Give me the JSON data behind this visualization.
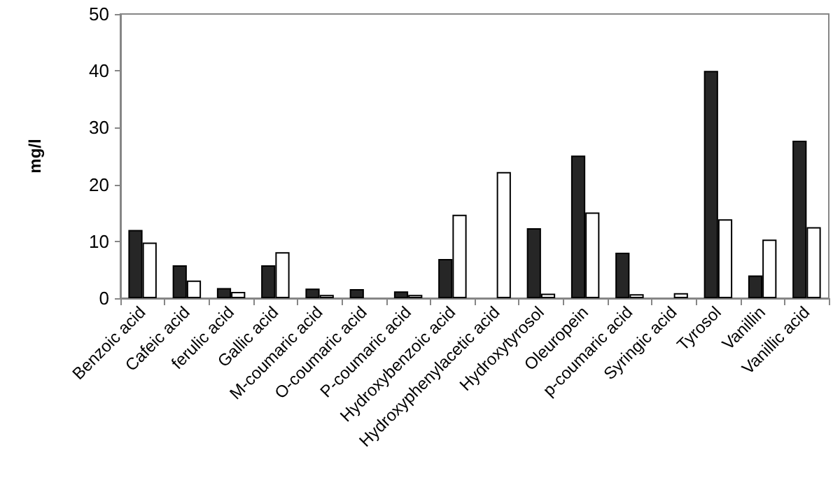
{
  "chart_data": {
    "type": "bar",
    "ylabel": "mg/l",
    "categories": [
      "Benzoic acid",
      "Cafeic acid",
      "ferulic acid",
      "Gallic acid",
      "M-coumaric acid",
      "O-coumaric acid",
      "P-coumaric acid",
      "Hydroxybenzoic acid",
      "Hydroxyphenylacetic acid",
      "Hydroxytyrosol",
      "Oleuropein",
      "p-coumaric acid",
      "Syringic acid",
      "Tyrosol",
      "Vanillin",
      "Vanillic acid"
    ],
    "series": [
      {
        "color": "#262626",
        "values": [
          12,
          5.8,
          1.8,
          5.8,
          1.7,
          1.6,
          1.2,
          6.9,
          null,
          12.3,
          25.1,
          8,
          null,
          40,
          4,
          27.7
        ]
      },
      {
        "color": "#ffffff",
        "values": [
          9.8,
          3.1,
          1.1,
          8.1,
          0.6,
          null,
          0.6,
          14.7,
          22.2,
          0.8,
          15.1,
          0.7,
          0.9,
          13.9,
          10.3,
          12.5
        ]
      }
    ],
    "ylim": [
      0,
      50
    ],
    "yticks": [
      0,
      10,
      20,
      30,
      40,
      50
    ],
    "grid": false
  }
}
